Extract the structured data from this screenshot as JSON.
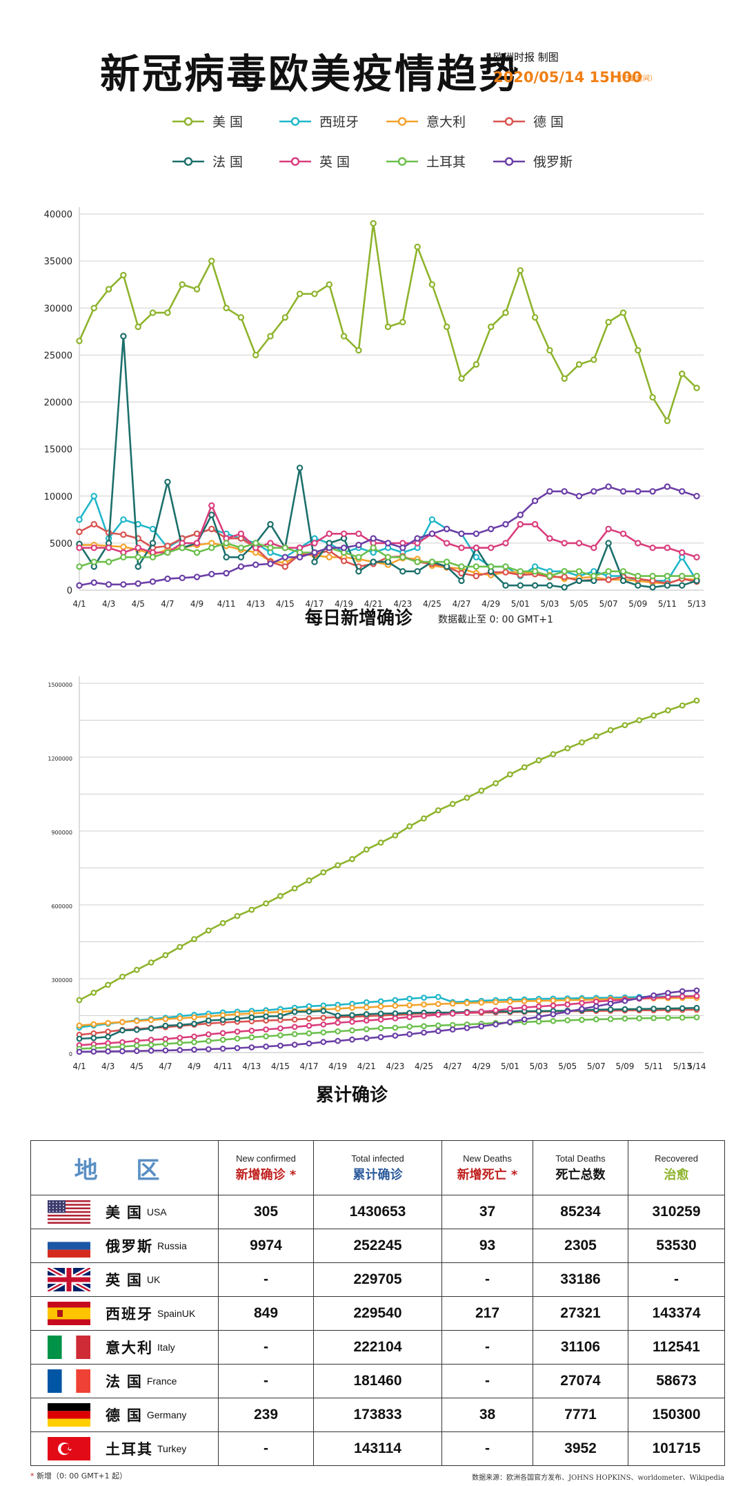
{
  "header": {
    "title": "新冠病毒欧美疫情趋势",
    "credit": "欧洲时报 制图",
    "datetime": "2020/05/14 15H00",
    "timezone_note": "（巴黎时间）"
  },
  "chart_data": [
    {
      "type": "line",
      "title": "每日新增确诊",
      "subtitle": "数据截止至 0: 00 GMT+1",
      "ylim": [
        0,
        40000
      ],
      "yticks": [
        0,
        5000,
        10000,
        15000,
        20000,
        25000,
        30000,
        35000,
        40000
      ],
      "xtick_labels": [
        "4/1",
        "4/3",
        "4/5",
        "4/7",
        "4/9",
        "4/11",
        "4/13",
        "4/15",
        "4/17",
        "4/19",
        "4/21",
        "4/23",
        "4/25",
        "4/27",
        "4/29",
        "5/01",
        "5/03",
        "5/05",
        "5/07",
        "5/09",
        "5/11",
        "5/13"
      ],
      "grid": true,
      "legend": "top",
      "series": [
        {
          "name": "美 国",
          "color": "#8db32b",
          "values": [
            26500,
            30000,
            32000,
            33500,
            28000,
            29500,
            29500,
            32500,
            32000,
            35000,
            30000,
            29000,
            25000,
            27000,
            29000,
            31500,
            31500,
            32500,
            27000,
            25500,
            39000,
            28000,
            28500,
            36500,
            32500,
            28000,
            22500,
            24000,
            28000,
            29500,
            34000,
            29000,
            25500,
            22500,
            24000,
            24500,
            28500,
            29500,
            25500,
            20500,
            18000,
            23000,
            21500
          ]
        },
        {
          "name": "西班牙",
          "color": "#1fb6c9",
          "values": [
            7500,
            10000,
            5500,
            7500,
            7000,
            6500,
            4500,
            5500,
            6000,
            6500,
            6000,
            5500,
            5000,
            4000,
            3500,
            4500,
            5500,
            5000,
            4000,
            4500,
            4000,
            4500,
            4000,
            4500,
            7500,
            6500,
            6000,
            3500,
            2500,
            2500,
            1500,
            2500,
            2000,
            2000,
            1500,
            2000,
            1500,
            1500,
            1000,
            1000,
            1000,
            3500,
            1000
          ]
        },
        {
          "name": "意大利",
          "color": "#f4a22b",
          "values": [
            4800,
            4800,
            4700,
            4600,
            4300,
            3800,
            4300,
            4500,
            4800,
            5000,
            4700,
            4300,
            4000,
            3100,
            2900,
            3800,
            3700,
            3500,
            3500,
            3300,
            3000,
            2700,
            3400,
            3300,
            2600,
            2400,
            2300,
            1800,
            1600,
            1900,
            1900,
            1800,
            1600,
            1200,
            1300,
            1400,
            1100,
            1100,
            1000,
            800,
            700,
            1200,
            1100
          ]
        },
        {
          "name": "德 国",
          "color": "#d9534f",
          "values": [
            6200,
            7000,
            6100,
            5900,
            5500,
            4500,
            4700,
            5500,
            6000,
            6500,
            5500,
            5500,
            4500,
            3000,
            2500,
            3800,
            3800,
            4200,
            3100,
            2500,
            2800,
            3500,
            3600,
            3000,
            2800,
            2500,
            1800,
            1500,
            1900,
            1900,
            1600,
            1700,
            1400,
            1400,
            1000,
            1100,
            1100,
            1400,
            1200,
            1000,
            700,
            1200,
            900
          ]
        },
        {
          "name": "法 国",
          "color": "#1b6f6b",
          "values": [
            4900,
            2500,
            5000,
            27000,
            2500,
            5000,
            11500,
            4500,
            5000,
            8000,
            3500,
            3500,
            5000,
            7000,
            4500,
            13000,
            3000,
            5000,
            5500,
            2000,
            3000,
            3000,
            2000,
            2000,
            3000,
            2500,
            1000,
            4500,
            2000,
            500,
            500,
            500,
            500,
            300,
            1000,
            1000,
            5000,
            1000,
            500,
            300,
            500,
            500,
            1000
          ]
        },
        {
          "name": "英 国",
          "color": "#d93d7c",
          "values": [
            4500,
            4500,
            4500,
            4000,
            4500,
            4000,
            4000,
            5000,
            5000,
            9000,
            5500,
            6000,
            4500,
            5000,
            4500,
            4500,
            5000,
            6000,
            6000,
            6000,
            5000,
            5000,
            5000,
            5000,
            6000,
            5000,
            4500,
            4500,
            4500,
            5000,
            7000,
            7000,
            5500,
            5000,
            5000,
            4500,
            6500,
            6000,
            5000,
            4500,
            4500,
            4000,
            3500
          ]
        },
        {
          "name": "土耳其",
          "color": "#6cbf4c",
          "values": [
            2500,
            3000,
            3000,
            3500,
            3500,
            3500,
            4000,
            4500,
            4000,
            4500,
            5000,
            4500,
            5000,
            4500,
            4500,
            4000,
            4000,
            4500,
            4000,
            3500,
            4500,
            3500,
            3500,
            3000,
            3000,
            3000,
            2500,
            2500,
            2500,
            2500,
            2000,
            2000,
            1500,
            2000,
            2000,
            1500,
            2000,
            2000,
            1500,
            1500,
            1500,
            1500,
            1500
          ]
        },
        {
          "name": "俄罗斯",
          "color": "#6b3ea6",
          "values": [
            500,
            800,
            600,
            600,
            700,
            900,
            1200,
            1300,
            1400,
            1700,
            1800,
            2500,
            2700,
            2800,
            3500,
            3500,
            4000,
            4500,
            4500,
            4800,
            5500,
            5000,
            4500,
            5500,
            6000,
            6500,
            6000,
            6000,
            6500,
            7000,
            8000,
            9500,
            10500,
            10500,
            10000,
            10500,
            11000,
            10500,
            10500,
            10500,
            11000,
            10500,
            10000
          ]
        }
      ]
    },
    {
      "type": "line",
      "title": "累计确诊",
      "ylim": [
        0,
        1500000
      ],
      "yticks": [
        0,
        300000,
        600000,
        900000,
        1200000,
        1500000
      ],
      "ytick_labels": [
        "0",
        "300000",
        "600000",
        "900000",
        "1200000",
        "1500000"
      ],
      "xtick_labels": [
        "4/1",
        "4/3",
        "4/5",
        "4/7",
        "4/9",
        "4/11",
        "4/13",
        "4/15",
        "4/17",
        "4/19",
        "4/21",
        "4/23",
        "4/25",
        "4/27",
        "4/29",
        "5/01",
        "5/03",
        "5/05",
        "5/07",
        "5/09",
        "5/11",
        "5/13",
        "5/14"
      ],
      "grid": true,
      "series": [
        {
          "name": "美 国",
          "color": "#8db32b",
          "values": [
            213000,
            243000,
            275000,
            308000,
            336000,
            366000,
            396000,
            429000,
            461000,
            496000,
            526000,
            555000,
            580000,
            606000,
            636000,
            667000,
            699000,
            732000,
            761000,
            786000,
            825000,
            853000,
            882000,
            919000,
            951000,
            984000,
            1010000,
            1035000,
            1064000,
            1094000,
            1130000,
            1159000,
            1187000,
            1212000,
            1236000,
            1260000,
            1285000,
            1310000,
            1330000,
            1350000,
            1369000,
            1390000,
            1410000,
            1430000
          ]
        },
        {
          "name": "西班牙",
          "color": "#1fb6c9",
          "values": [
            102000,
            110000,
            117000,
            124000,
            131000,
            136000,
            141000,
            148000,
            153000,
            158000,
            163000,
            166000,
            169000,
            172000,
            177000,
            182000,
            188000,
            191000,
            194000,
            198000,
            204000,
            208000,
            213000,
            219000,
            223000,
            226000,
            205000,
            207000,
            210000,
            213000,
            215000,
            216000,
            218000,
            219000,
            220000,
            221000,
            222000,
            223000,
            224000,
            226000,
            227000,
            228000,
            229000,
            229540
          ]
        },
        {
          "name": "意大利",
          "color": "#f4a22b",
          "values": [
            110000,
            115000,
            120000,
            124000,
            128000,
            132000,
            136000,
            139000,
            143000,
            147000,
            152000,
            156000,
            159000,
            162000,
            165000,
            169000,
            172000,
            175000,
            178000,
            182000,
            183000,
            187000,
            190000,
            192000,
            195000,
            197000,
            199000,
            201000,
            203000,
            205000,
            207000,
            209000,
            210000,
            211000,
            213000,
            214000,
            215000,
            217000,
            218000,
            219000,
            220000,
            221000,
            222000,
            222104
          ]
        },
        {
          "name": "德 国",
          "color": "#d9534f",
          "values": [
            72000,
            78000,
            85000,
            92000,
            96000,
            100000,
            103000,
            108000,
            113000,
            118000,
            122000,
            125000,
            127000,
            130000,
            132000,
            134000,
            138000,
            141000,
            144000,
            145000,
            148000,
            150000,
            153000,
            156000,
            158000,
            159000,
            160000,
            161000,
            162000,
            163000,
            164000,
            165000,
            166000,
            167000,
            168000,
            168500,
            169000,
            170000,
            171000,
            171500,
            172000,
            173000,
            173500,
            173833
          ]
        },
        {
          "name": "法 国",
          "color": "#1b6f6b",
          "values": [
            56000,
            59000,
            64000,
            90000,
            92000,
            98000,
            109000,
            112000,
            117000,
            130000,
            133000,
            137000,
            143000,
            147000,
            148000,
            165000,
            166000,
            169000,
            150000,
            152000,
            156000,
            158000,
            159000,
            161000,
            162000,
            162500,
            163000,
            165000,
            166000,
            167000,
            167500,
            168000,
            168500,
            169000,
            170000,
            172000,
            174000,
            175000,
            176000,
            177000,
            178000,
            179000,
            180000,
            181460
          ]
        },
        {
          "name": "英 国",
          "color": "#d93d7c",
          "values": [
            30000,
            34000,
            38000,
            42000,
            48000,
            52000,
            55000,
            60000,
            65000,
            74000,
            79000,
            85000,
            89000,
            94000,
            98000,
            104000,
            109000,
            114000,
            121000,
            125000,
            130000,
            134000,
            139000,
            144000,
            149000,
            154000,
            158000,
            162000,
            166000,
            171000,
            178000,
            183000,
            187000,
            191000,
            195000,
            201000,
            207000,
            211000,
            215000,
            219000,
            223000,
            226000,
            228000,
            229705
          ]
        },
        {
          "name": "土耳其",
          "color": "#6cbf4c",
          "values": [
            15000,
            18000,
            21000,
            24000,
            28000,
            31000,
            35000,
            39000,
            42000,
            47000,
            52000,
            57000,
            62000,
            66000,
            70000,
            75000,
            78000,
            82000,
            86000,
            90000,
            95000,
            99000,
            101000,
            105000,
            107000,
            110000,
            112000,
            114000,
            117000,
            120000,
            122000,
            124000,
            126000,
            128000,
            131000,
            133000,
            135000,
            136000,
            138000,
            139000,
            140000,
            141000,
            142000,
            143114
          ]
        },
        {
          "name": "俄罗斯",
          "color": "#6b3ea6",
          "values": [
            3000,
            4000,
            4700,
            5400,
            6300,
            7500,
            8600,
            10000,
            11900,
            13600,
            15800,
            18300,
            21100,
            24500,
            27900,
            32000,
            36700,
            42800,
            47100,
            52800,
            57900,
            62800,
            68600,
            74600,
            80900,
            87100,
            93600,
            99400,
            106500,
            114400,
            124000,
            134700,
            145300,
            155400,
            165900,
            177100,
            187900,
            198700,
            209700,
            221300,
            232200,
            242300,
            249200,
            252245
          ]
        }
      ]
    }
  ],
  "table": {
    "header": {
      "region": "地 区",
      "new_confirmed_en": "New confirmed",
      "new_confirmed_cn": "新增确诊",
      "total_infected_en": "Total infected",
      "total_infected_cn": "累计确诊",
      "new_deaths_en": "New Deaths",
      "new_deaths_cn": "新增死亡",
      "total_deaths_en": "Total Deaths",
      "total_deaths_cn": "死亡总数",
      "recovered_en": "Recovered",
      "recovered_cn": "治愈",
      "star": "*"
    },
    "rows": [
      {
        "flag": "us-flag",
        "cn": "美 国",
        "en": "USA",
        "new": "305",
        "total": "1430653",
        "new_deaths": "37",
        "total_deaths": "85234",
        "recovered": "310259"
      },
      {
        "flag": "russia-flag",
        "cn": "俄罗斯",
        "en": "Russia",
        "new": "9974",
        "total": "252245",
        "new_deaths": "93",
        "total_deaths": "2305",
        "recovered": "53530"
      },
      {
        "flag": "uk-flag",
        "cn": "英 国",
        "en": "UK",
        "new": "-",
        "total": "229705",
        "new_deaths": "-",
        "total_deaths": "33186",
        "recovered": "-"
      },
      {
        "flag": "spain-flag",
        "cn": "西班牙",
        "en": "SpainUK",
        "new": "849",
        "total": "229540",
        "new_deaths": "217",
        "total_deaths": "27321",
        "recovered": "143374"
      },
      {
        "flag": "italy-flag",
        "cn": "意大利",
        "en": "Italy",
        "new": "-",
        "total": "222104",
        "new_deaths": "-",
        "total_deaths": "31106",
        "recovered": "112541"
      },
      {
        "flag": "france-flag",
        "cn": "法 国",
        "en": "France",
        "new": "-",
        "total": "181460",
        "new_deaths": "-",
        "total_deaths": "27074",
        "recovered": "58673"
      },
      {
        "flag": "germany-flag",
        "cn": "德 国",
        "en": "Germany",
        "new": "239",
        "total": "173833",
        "new_deaths": "38",
        "total_deaths": "7771",
        "recovered": "150300"
      },
      {
        "flag": "turkey-flag",
        "cn": "土耳其",
        "en": "Turkey",
        "new": "-",
        "total": "143114",
        "new_deaths": "-",
        "total_deaths": "3952",
        "recovered": "101715"
      }
    ]
  },
  "footer": {
    "star": "*",
    "note": "新增（0: 00 GMT+1 起）",
    "source": "数据来源：欧洲各国官方发布、JOHNS HOPKINS、worldometer、Wikipedia"
  }
}
